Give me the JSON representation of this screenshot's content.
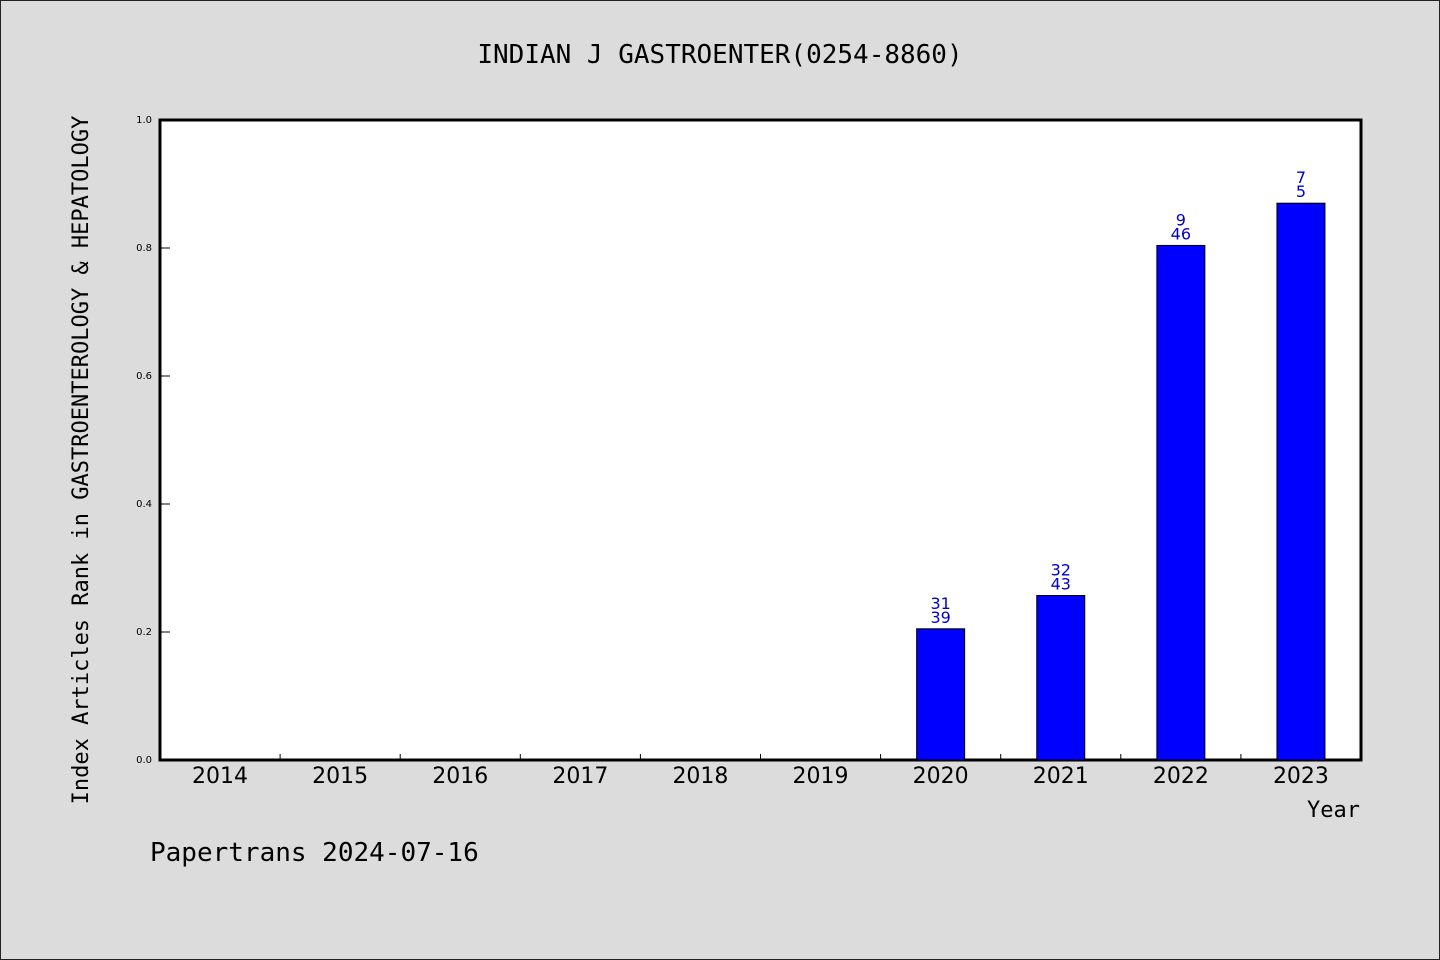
{
  "chart_data": {
    "type": "bar",
    "title": "INDIAN J GASTROENTER(0254-8860)",
    "ylabel": "Index Articles Rank in GASTROENTEROLOGY & HEPATOLOGY",
    "xlabel": "Year",
    "ylim": [
      0,
      1.0
    ],
    "yticks": [
      "0.0",
      "0.2",
      "0.4",
      "0.6",
      "0.8",
      "1.0"
    ],
    "categories": [
      "2014",
      "2015",
      "2016",
      "2017",
      "2018",
      "2019",
      "2020",
      "2021",
      "2022",
      "2023"
    ],
    "values": [
      null,
      null,
      null,
      null,
      null,
      null,
      0.205,
      0.257,
      0.804,
      0.87
    ],
    "labels_top": [
      "",
      "",
      "",
      "",
      "",
      "",
      "31",
      "32",
      "9",
      "7"
    ],
    "labels_bottom": [
      "",
      "",
      "",
      "",
      "",
      "",
      "39",
      "43",
      "46",
      "5"
    ],
    "bar_color": "#0000ff",
    "label_color": "#0000cc",
    "grid": false,
    "legend": "none"
  },
  "footer": "Papertrans 2024-07-16"
}
